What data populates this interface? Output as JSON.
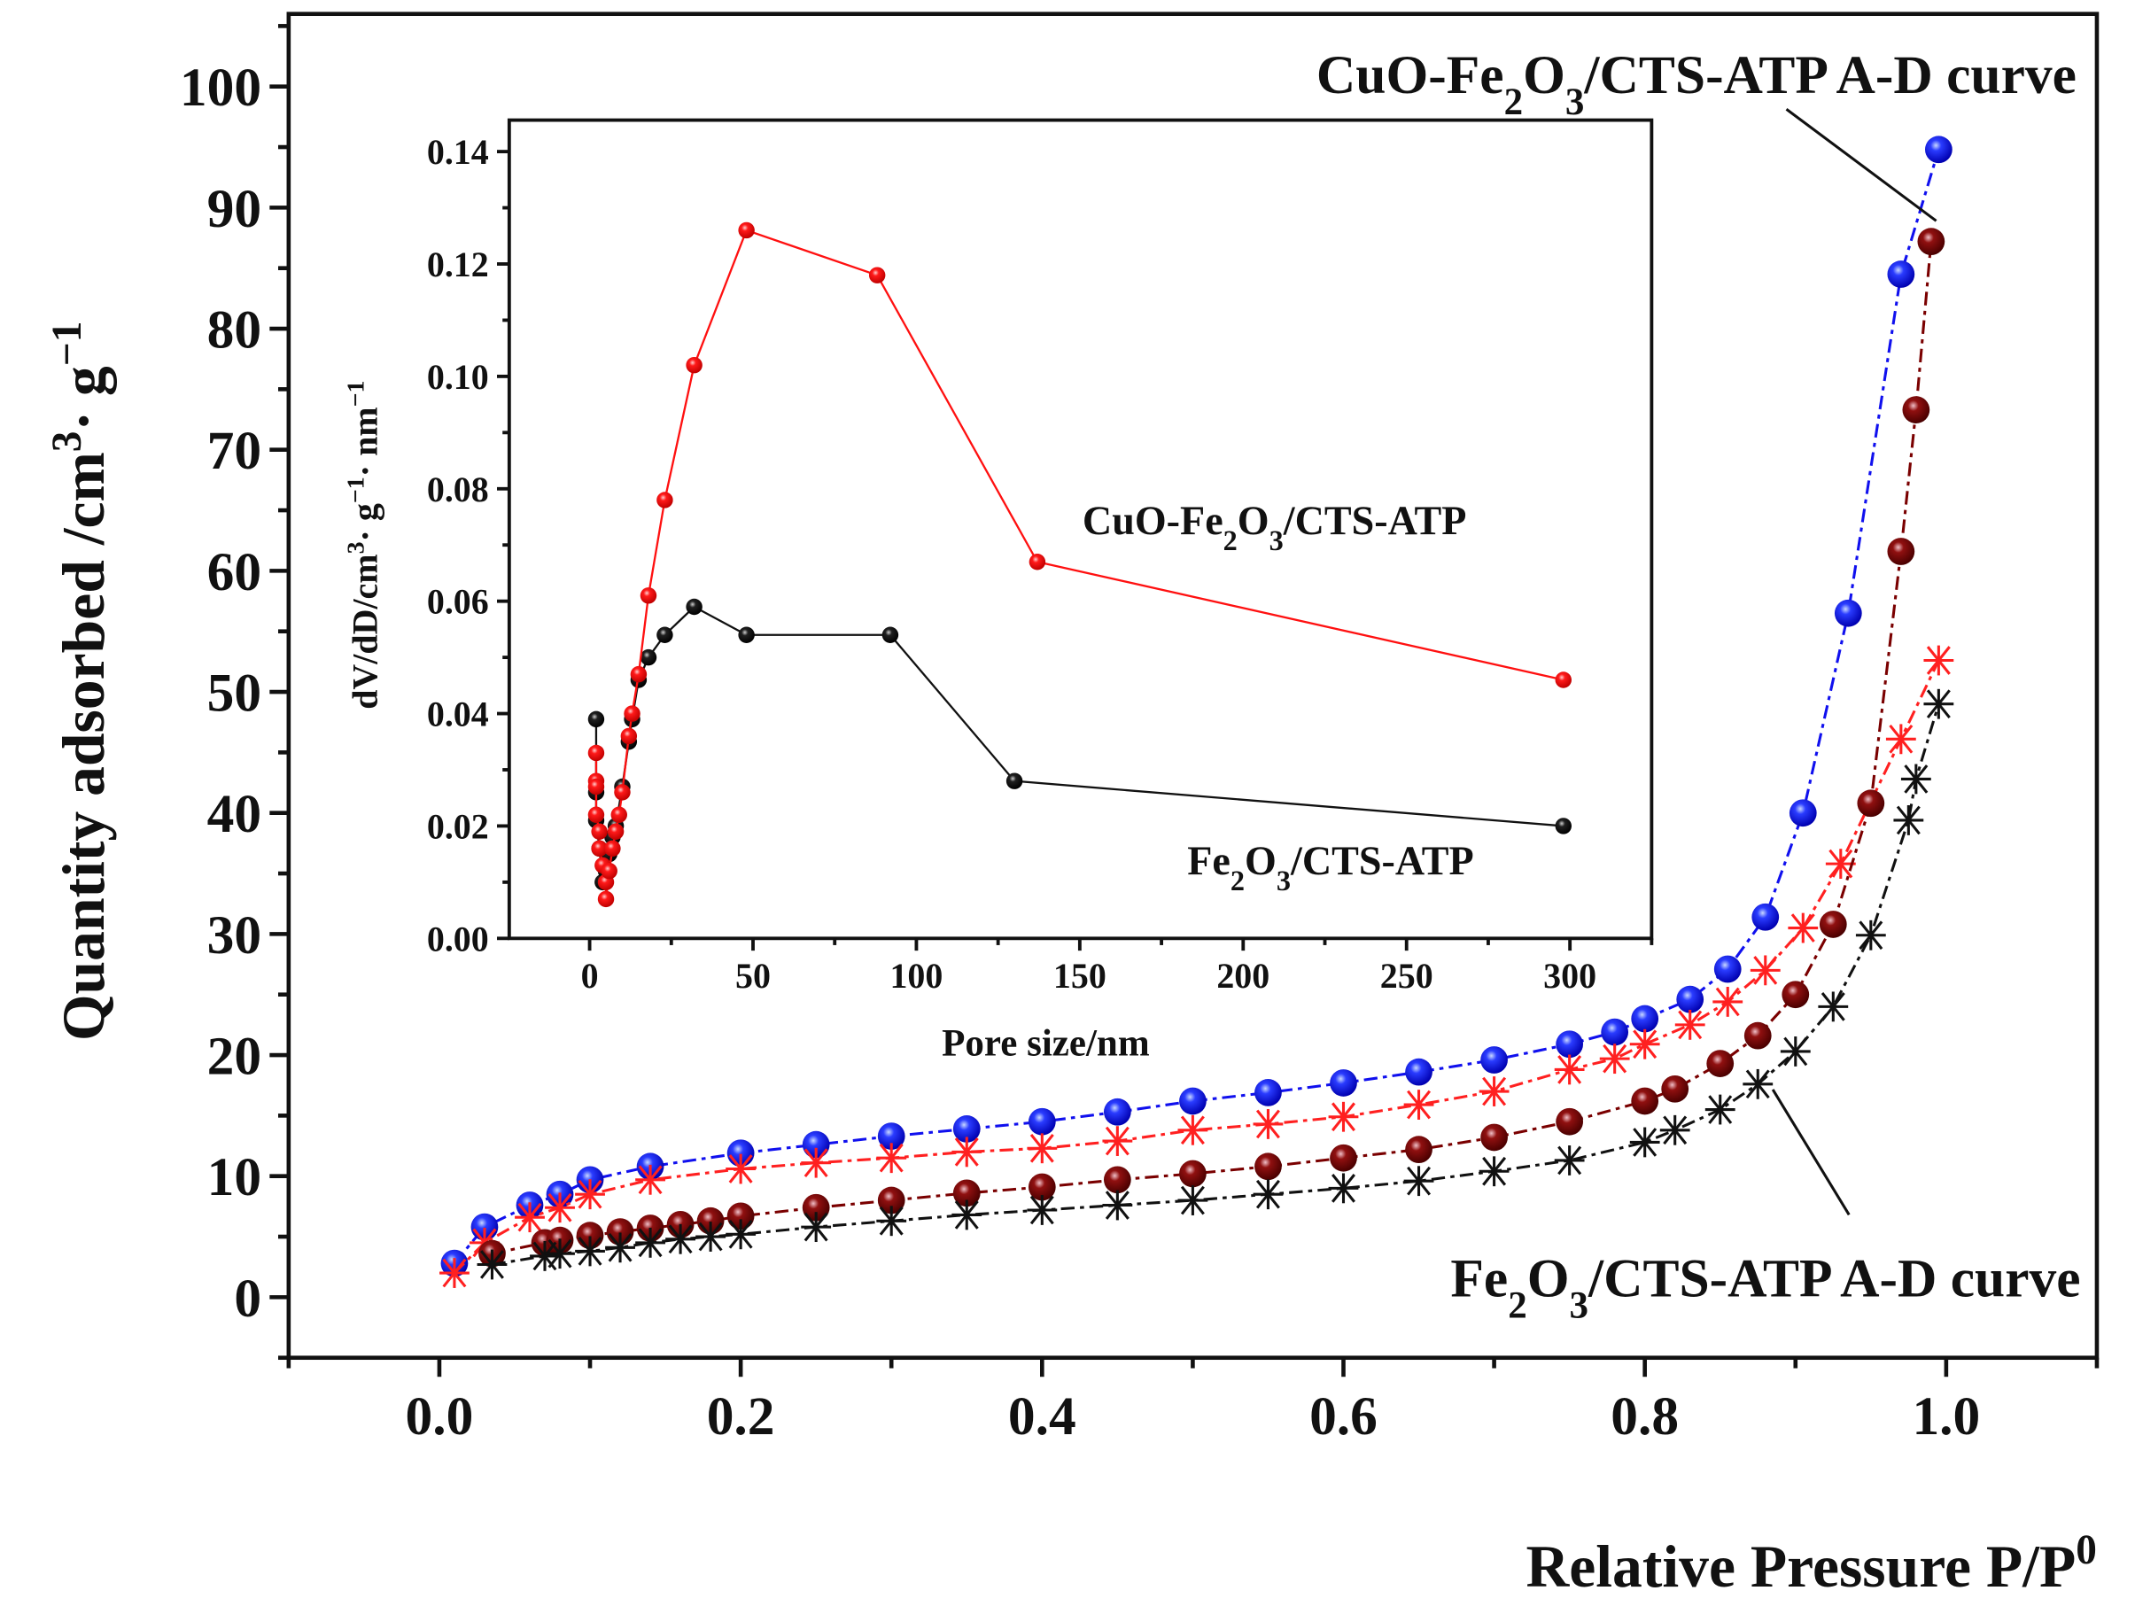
{
  "chart_data": [
    {
      "type": "scatter",
      "title": "",
      "xlabel": [
        [
          "Relative Pressure P/P",
          ""
        ],
        [
          "0",
          "sup"
        ]
      ],
      "ylabel": [
        [
          "Quantity adsorbed /cm",
          ""
        ],
        [
          "3",
          "sup"
        ],
        [
          "· g",
          ""
        ],
        [
          "−1",
          "sup"
        ]
      ],
      "xlim": [
        -0.1,
        1.1
      ],
      "ylim": [
        -5,
        106
      ],
      "xticks": [
        "0.0",
        "0.2",
        "0.4",
        "0.6",
        "0.8",
        "1.0"
      ],
      "xtick_values": [
        0,
        0.2,
        0.4,
        0.6,
        0.8,
        1.0
      ],
      "yticks": [
        "0",
        "10",
        "20",
        "30",
        "40",
        "50",
        "60",
        "70",
        "80",
        "90",
        "100"
      ],
      "ytick_values": [
        0,
        10,
        20,
        30,
        40,
        50,
        60,
        70,
        80,
        90,
        100
      ],
      "grid": false,
      "annotations": [
        {
          "text": [
            [
              "CuO-Fe",
              ""
            ],
            [
              "2",
              "sub"
            ],
            [
              "O",
              ""
            ],
            [
              "3",
              "sub"
            ],
            [
              "/CTS-ATP A-D curve",
              ""
            ]
          ],
          "points_to": [
            0.995,
            94
          ]
        },
        {
          "text": [
            [
              "Fe",
              ""
            ],
            [
              "2",
              "sub"
            ],
            [
              "O",
              ""
            ],
            [
              "3",
              "sub"
            ],
            [
              "/CTS-ATP A-D curve",
              ""
            ]
          ],
          "points_to": [
            0.88,
            17
          ]
        }
      ],
      "series": [
        {
          "name": "CuO-Fe2O3/CTS-ATP adsorption",
          "marker": "sphere",
          "color": "#1010ee",
          "x": [
            0.01,
            0.03,
            0.06,
            0.08,
            0.1,
            0.14,
            0.2,
            0.25,
            0.3,
            0.35,
            0.4,
            0.45,
            0.5,
            0.55,
            0.6,
            0.65,
            0.7,
            0.75,
            0.78,
            0.8,
            0.83,
            0.855,
            0.88,
            0.905,
            0.935,
            0.97,
            0.995
          ],
          "y": [
            2.8,
            5.8,
            7.6,
            8.5,
            9.7,
            10.8,
            11.9,
            12.6,
            13.3,
            13.9,
            14.5,
            15.3,
            16.2,
            16.9,
            17.7,
            18.6,
            19.6,
            20.9,
            21.9,
            23.0,
            24.6,
            27.1,
            31.4,
            40.0,
            56.5,
            84.5,
            94.8
          ]
        },
        {
          "name": "CuO-Fe2O3/CTS-ATP desorption",
          "marker": "star",
          "color": "#ff2020",
          "x": [
            0.01,
            0.03,
            0.06,
            0.08,
            0.1,
            0.14,
            0.2,
            0.25,
            0.3,
            0.35,
            0.4,
            0.45,
            0.5,
            0.55,
            0.6,
            0.65,
            0.7,
            0.75,
            0.78,
            0.8,
            0.83,
            0.855,
            0.88,
            0.905,
            0.93,
            0.97,
            0.995
          ],
          "y": [
            2.0,
            4.5,
            6.6,
            7.4,
            8.5,
            9.7,
            10.6,
            11.1,
            11.5,
            12.0,
            12.3,
            12.9,
            13.8,
            14.3,
            14.9,
            15.9,
            17.0,
            18.8,
            19.7,
            20.9,
            22.5,
            24.4,
            27.0,
            30.5,
            35.8,
            46.1,
            52.6
          ]
        },
        {
          "name": "Fe2O3/CTS-ATP adsorption",
          "marker": "sphere",
          "color": "#7a0000",
          "x": [
            0.035,
            0.07,
            0.08,
            0.1,
            0.12,
            0.14,
            0.16,
            0.18,
            0.2,
            0.25,
            0.3,
            0.35,
            0.4,
            0.45,
            0.5,
            0.55,
            0.6,
            0.65,
            0.7,
            0.75,
            0.8,
            0.82,
            0.85,
            0.875,
            0.9,
            0.925,
            0.95,
            0.97,
            0.98,
            0.99
          ],
          "y": [
            3.6,
            4.5,
            4.7,
            5.1,
            5.4,
            5.7,
            6.0,
            6.3,
            6.7,
            7.4,
            8.0,
            8.6,
            9.1,
            9.7,
            10.2,
            10.8,
            11.5,
            12.2,
            13.2,
            14.5,
            16.2,
            17.2,
            19.3,
            21.6,
            25.0,
            30.8,
            40.8,
            61.6,
            73.3,
            87.2
          ]
        },
        {
          "name": "Fe2O3/CTS-ATP desorption",
          "marker": "star",
          "color": "#111111",
          "x": [
            0.035,
            0.07,
            0.08,
            0.1,
            0.12,
            0.14,
            0.16,
            0.18,
            0.2,
            0.25,
            0.3,
            0.35,
            0.4,
            0.45,
            0.5,
            0.55,
            0.6,
            0.65,
            0.7,
            0.75,
            0.8,
            0.82,
            0.85,
            0.875,
            0.9,
            0.925,
            0.95,
            0.975,
            0.98,
            0.995
          ],
          "y": [
            2.7,
            3.4,
            3.6,
            3.8,
            4.1,
            4.5,
            4.8,
            5.0,
            5.2,
            5.8,
            6.3,
            6.8,
            7.2,
            7.6,
            8.0,
            8.5,
            9.0,
            9.6,
            10.4,
            11.3,
            12.8,
            13.8,
            15.5,
            17.6,
            20.3,
            24.0,
            29.9,
            39.4,
            42.8,
            49.0
          ]
        }
      ]
    },
    {
      "type": "line",
      "title": "",
      "xlabel": [
        [
          "Pore size/nm",
          ""
        ]
      ],
      "ylabel": [
        [
          "dV/dD/cm",
          ""
        ],
        [
          "3",
          "sup"
        ],
        [
          "· g",
          ""
        ],
        [
          "−1",
          "sup"
        ],
        [
          "· nm",
          ""
        ],
        [
          "−1",
          "sup"
        ]
      ],
      "xlim": [
        -24.6,
        325
      ],
      "ylim": [
        0,
        0.1456
      ],
      "xticks": [
        "0",
        "50",
        "100",
        "150",
        "200",
        "250",
        "300"
      ],
      "xtick_values": [
        0,
        50,
        100,
        150,
        200,
        250,
        300
      ],
      "yticks": [
        "0.00",
        "0.02",
        "0.04",
        "0.06",
        "0.08",
        "0.10",
        "0.12",
        "0.14"
      ],
      "ytick_values": [
        0,
        0.02,
        0.04,
        0.06,
        0.08,
        0.1,
        0.12,
        0.14
      ],
      "grid": false,
      "annotations": [
        {
          "text": [
            [
              "CuO-Fe",
              ""
            ],
            [
              "2",
              "sub"
            ],
            [
              "O",
              ""
            ],
            [
              "3",
              "sub"
            ],
            [
              "/CTS-ATP",
              ""
            ]
          ]
        },
        {
          "text": [
            [
              "Fe",
              ""
            ],
            [
              "2",
              "sub"
            ],
            [
              "O",
              ""
            ],
            [
              "3",
              "sub"
            ],
            [
              "/CTS-ATP",
              ""
            ]
          ]
        }
      ],
      "series": [
        {
          "name": "Fe2O3/CTS-ATP",
          "color": "#111111",
          "x": [
            2,
            2,
            2,
            3,
            4,
            5,
            6,
            7,
            8,
            10,
            12,
            13,
            15,
            18,
            23,
            32,
            48,
            92,
            130,
            298
          ],
          "y": [
            0.039,
            0.026,
            0.021,
            0.016,
            0.01,
            0.012,
            0.015,
            0.018,
            0.02,
            0.027,
            0.035,
            0.039,
            0.046,
            0.05,
            0.054,
            0.059,
            0.054,
            0.054,
            0.028,
            0.02
          ]
        },
        {
          "name": "CuO-Fe2O3/CTS-ATP",
          "color": "#ff1010",
          "x": [
            2,
            2,
            2,
            2,
            3,
            3,
            4,
            5,
            5,
            6,
            7,
            8,
            9,
            10,
            12,
            13,
            15,
            18,
            23,
            32,
            48,
            88,
            137,
            298
          ],
          "y": [
            0.033,
            0.028,
            0.027,
            0.022,
            0.019,
            0.016,
            0.013,
            0.01,
            0.007,
            0.012,
            0.016,
            0.019,
            0.022,
            0.026,
            0.036,
            0.04,
            0.047,
            0.061,
            0.078,
            0.102,
            0.126,
            0.118,
            0.067,
            0.046
          ]
        }
      ]
    }
  ]
}
